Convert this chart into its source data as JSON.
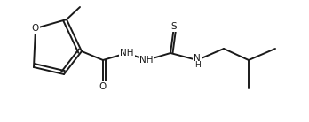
{
  "background": "#ffffff",
  "figsize": [
    3.48,
    1.38
  ],
  "dpi": 100,
  "line_color": "#1a1a1a",
  "lw": 1.4,
  "atoms": {
    "O_furan": "O",
    "S": "S",
    "O_carbonyl": "O",
    "NH1": "NH",
    "NH2": "NH",
    "N_hydrazine": "N"
  }
}
